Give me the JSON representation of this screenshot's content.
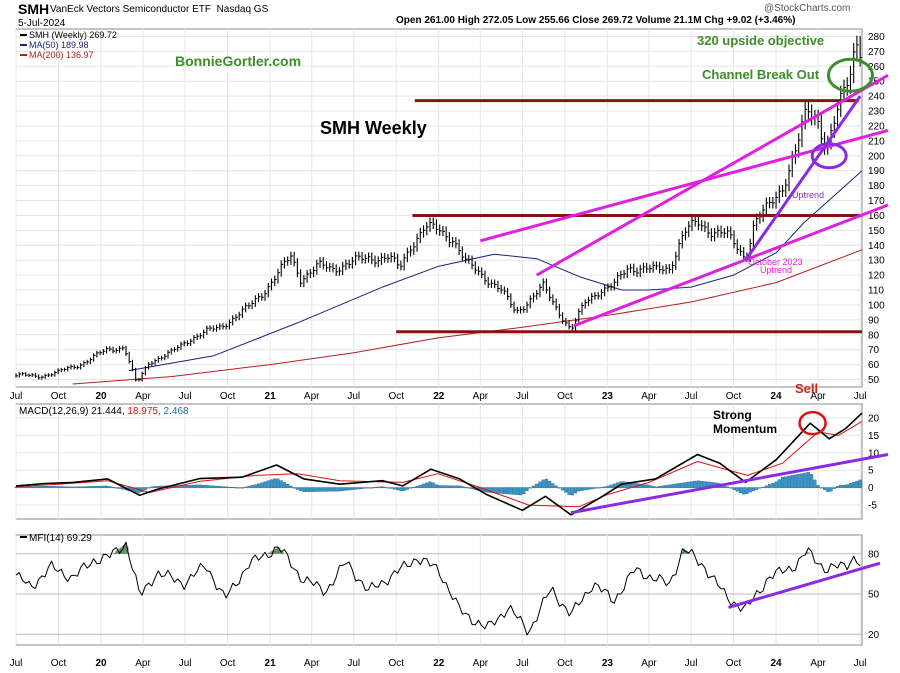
{
  "header": {
    "symbol": "SMH",
    "name": "VanEck Vectors Semiconductor ETF",
    "exchange": "Nasdaq GS",
    "date": "5-Jul-2024",
    "ohlc": "Open 261.00  High 272.05  Low 255.66  Close 269.72  Volume 21.1M  Chg +9.02 (+3.46%)",
    "watermark": "@StockCharts.com"
  },
  "colors": {
    "price": "#000000",
    "ma50": "#1a237e",
    "ma200": "#b22222",
    "support": "#8b1010",
    "channel": "#e020e0",
    "trend": "#8a2be2",
    "macd_signal": "#e01010",
    "histogram": "#3399cc",
    "circle_green": "#3c8f2a",
    "circle_red": "#e01010",
    "annotation_green": "#3c8f2a",
    "annotation_red": "#d02020"
  },
  "chart_data": [
    {
      "panel": "price",
      "type": "line",
      "title": "SMH Weekly",
      "legend": [
        {
          "label": "SMH (Weekly) 269.72",
          "color": "#000000"
        },
        {
          "label": "MA(50) 189.98",
          "color": "#1a237e"
        },
        {
          "label": "MA(200) 136.97",
          "color": "#b22222"
        }
      ],
      "yticks": [
        50,
        60,
        70,
        80,
        90,
        100,
        110,
        120,
        130,
        140,
        150,
        160,
        170,
        180,
        190,
        200,
        210,
        220,
        230,
        240,
        250,
        260,
        270,
        280
      ],
      "ylim": [
        45,
        285
      ],
      "xticks": [
        "Jul",
        "Oct",
        "20",
        "Apr",
        "Jul",
        "Oct",
        "21",
        "Apr",
        "Jul",
        "Oct",
        "22",
        "Apr",
        "Jul",
        "Oct",
        "23",
        "Apr",
        "Jul",
        "Oct",
        "24",
        "Apr",
        "Jul"
      ],
      "x_start": "2019-07-01",
      "x_end": "2024-07-05",
      "series": [
        {
          "name": "SMH (Weekly)",
          "points": [
            [
              "2019-07-01",
              53
            ],
            [
              "2019-08-15",
              52
            ],
            [
              "2019-10-01",
              55
            ],
            [
              "2019-11-15",
              60
            ],
            [
              "2020-01-15",
              70
            ],
            [
              "2020-02-20",
              72
            ],
            [
              "2020-03-18",
              47
            ],
            [
              "2020-04-15",
              62
            ],
            [
              "2020-06-01",
              68
            ],
            [
              "2020-07-15",
              78
            ],
            [
              "2020-08-15",
              82
            ],
            [
              "2020-09-15",
              85
            ],
            [
              "2020-10-15",
              92
            ],
            [
              "2020-11-15",
              98
            ],
            [
              "2020-12-15",
              108
            ],
            [
              "2021-01-15",
              120
            ],
            [
              "2021-02-15",
              132
            ],
            [
              "2021-03-08",
              118
            ],
            [
              "2021-04-15",
              126
            ],
            [
              "2021-05-15",
              124
            ],
            [
              "2021-06-15",
              128
            ],
            [
              "2021-07-15",
              130
            ],
            [
              "2021-08-15",
              132
            ],
            [
              "2021-09-15",
              132
            ],
            [
              "2021-10-08",
              124
            ],
            [
              "2021-11-01",
              140
            ],
            [
              "2021-12-01",
              152
            ],
            [
              "2021-12-31",
              150
            ],
            [
              "2022-01-31",
              145
            ],
            [
              "2022-03-01",
              128
            ],
            [
              "2022-04-15",
              118
            ],
            [
              "2022-05-15",
              110
            ],
            [
              "2022-06-17",
              95
            ],
            [
              "2022-08-15",
              112
            ],
            [
              "2022-09-30",
              90
            ],
            [
              "2022-10-14",
              83
            ],
            [
              "2022-11-15",
              102
            ],
            [
              "2022-12-15",
              110
            ],
            [
              "2023-01-15",
              113
            ],
            [
              "2023-02-15",
              125
            ],
            [
              "2023-03-15",
              125
            ],
            [
              "2023-04-15",
              123
            ],
            [
              "2023-05-15",
              125
            ],
            [
              "2023-06-15",
              148
            ],
            [
              "2023-07-15",
              155
            ],
            [
              "2023-08-15",
              150
            ],
            [
              "2023-09-15",
              147
            ],
            [
              "2023-10-27",
              132
            ],
            [
              "2023-11-15",
              155
            ],
            [
              "2023-12-15",
              165
            ],
            [
              "2024-01-15",
              180
            ],
            [
              "2024-02-15",
              205
            ],
            [
              "2024-03-08",
              230
            ],
            [
              "2024-04-01",
              225
            ],
            [
              "2024-04-19",
              205
            ],
            [
              "2024-05-15",
              230
            ],
            [
              "2024-06-15",
              262
            ],
            [
              "2024-06-20",
              283
            ],
            [
              "2024-07-05",
              270
            ]
          ]
        },
        {
          "name": "MA(50)",
          "points": [
            [
              "2020-03-01",
              56
            ],
            [
              "2020-09-01",
              66
            ],
            [
              "2021-03-01",
              88
            ],
            [
              "2021-09-01",
              112
            ],
            [
              "2022-01-01",
              126
            ],
            [
              "2022-05-01",
              134
            ],
            [
              "2022-08-01",
              131
            ],
            [
              "2022-11-01",
              119
            ],
            [
              "2023-02-01",
              110
            ],
            [
              "2023-04-01",
              110
            ],
            [
              "2023-07-01",
              112
            ],
            [
              "2023-10-01",
              120
            ],
            [
              "2024-01-01",
              135
            ],
            [
              "2024-03-01",
              155
            ],
            [
              "2024-05-01",
              172
            ],
            [
              "2024-07-05",
              190
            ]
          ]
        },
        {
          "name": "MA(200)",
          "points": [
            [
              "2019-11-01",
              47
            ],
            [
              "2020-06-01",
              52
            ],
            [
              "2021-01-01",
              60
            ],
            [
              "2021-07-01",
              68
            ],
            [
              "2022-01-01",
              78
            ],
            [
              "2022-07-01",
              85
            ],
            [
              "2023-01-01",
              93
            ],
            [
              "2023-07-01",
              102
            ],
            [
              "2024-01-01",
              115
            ],
            [
              "2024-07-05",
              137
            ]
          ]
        }
      ],
      "annotations": {
        "site": "BonnieGortler.com",
        "objective": "320 upside objective",
        "channel_break": "Channel Break Out",
        "sell": "Sell",
        "uptrend_top": "Uptrend",
        "uptrend_bottom_1": "October 2023",
        "uptrend_bottom_2": "Uptrend"
      },
      "support_levels": [
        237,
        160,
        82
      ]
    },
    {
      "panel": "macd",
      "type": "line",
      "legend": "MACD(12,26,9) 21.444, 18.975, 2.468",
      "legend_parts": [
        "MACD(12,26,9) 21.444,",
        "18.975,",
        "2.468"
      ],
      "yticks": [
        -5,
        0,
        5,
        10,
        15,
        20
      ],
      "ylim": [
        -9,
        24
      ],
      "annotation_1": "Strong",
      "annotation_2": "Momentum",
      "series": [
        {
          "name": "MACD",
          "points": [
            [
              "2019-07-01",
              0.5
            ],
            [
              "2019-09-01",
              1.2
            ],
            [
              "2019-11-01",
              1.5
            ],
            [
              "2020-01-15",
              2.5
            ],
            [
              "2020-03-25",
              -2.2
            ],
            [
              "2020-05-01",
              -0.5
            ],
            [
              "2020-08-01",
              2.6
            ],
            [
              "2020-11-01",
              3
            ],
            [
              "2021-01-15",
              6.5
            ],
            [
              "2021-03-15",
              2.5
            ],
            [
              "2021-06-01",
              1
            ],
            [
              "2021-09-01",
              2
            ],
            [
              "2021-10-15",
              0.5
            ],
            [
              "2021-12-15",
              5.3
            ],
            [
              "2022-02-15",
              2.5
            ],
            [
              "2022-04-15",
              -2
            ],
            [
              "2022-07-01",
              -6.5
            ],
            [
              "2022-08-20",
              -2.5
            ],
            [
              "2022-10-14",
              -7.8
            ],
            [
              "2022-12-15",
              -3
            ],
            [
              "2023-02-01",
              1
            ],
            [
              "2023-04-15",
              2.5
            ],
            [
              "2023-07-15",
              9.5
            ],
            [
              "2023-09-01",
              7
            ],
            [
              "2023-10-27",
              1.5
            ],
            [
              "2024-01-01",
              8
            ],
            [
              "2024-03-15",
              18.5
            ],
            [
              "2024-04-25",
              14
            ],
            [
              "2024-05-31",
              17
            ],
            [
              "2024-07-05",
              21.4
            ]
          ]
        },
        {
          "name": "Signal",
          "points": [
            [
              "2019-07-01",
              0.3
            ],
            [
              "2019-10-01",
              1
            ],
            [
              "2020-01-15",
              2
            ],
            [
              "2020-04-15",
              -1.4
            ],
            [
              "2020-08-01",
              1.8
            ],
            [
              "2020-12-01",
              3.5
            ],
            [
              "2021-03-01",
              4
            ],
            [
              "2021-06-01",
              2
            ],
            [
              "2021-10-15",
              1.5
            ],
            [
              "2021-12-30",
              4
            ],
            [
              "2022-04-01",
              0
            ],
            [
              "2022-07-15",
              -5
            ],
            [
              "2022-10-31",
              -5.5
            ],
            [
              "2023-01-01",
              -2
            ],
            [
              "2023-04-01",
              1.5
            ],
            [
              "2023-07-15",
              7.5
            ],
            [
              "2023-10-31",
              3.5
            ],
            [
              "2024-01-15",
              7
            ],
            [
              "2024-04-01",
              16
            ],
            [
              "2024-05-15",
              15
            ],
            [
              "2024-07-05",
              19
            ]
          ]
        }
      ]
    },
    {
      "panel": "mfi",
      "type": "line",
      "legend": "MFI(14) 69.29",
      "yticks": [
        20,
        50,
        80
      ],
      "ylim": [
        12,
        94
      ],
      "series": [
        {
          "name": "MFI(14)",
          "points": [
            [
              "2019-07-01",
              64
            ],
            [
              "2019-08-01",
              55
            ],
            [
              "2019-09-15",
              70
            ],
            [
              "2019-11-01",
              62
            ],
            [
              "2019-12-15",
              75
            ],
            [
              "2020-01-20",
              78
            ],
            [
              "2020-02-25",
              88
            ],
            [
              "2020-03-25",
              48
            ],
            [
              "2020-05-01",
              66
            ],
            [
              "2020-07-01",
              58
            ],
            [
              "2020-08-15",
              72
            ],
            [
              "2020-09-25",
              46
            ],
            [
              "2020-11-15",
              72
            ],
            [
              "2021-01-20",
              85
            ],
            [
              "2021-03-10",
              62
            ],
            [
              "2021-05-01",
              52
            ],
            [
              "2021-06-15",
              74
            ],
            [
              "2021-08-01",
              52
            ],
            [
              "2021-09-15",
              62
            ],
            [
              "2021-11-15",
              77
            ],
            [
              "2022-01-01",
              68
            ],
            [
              "2022-02-15",
              38
            ],
            [
              "2022-04-15",
              24
            ],
            [
              "2022-06-01",
              40
            ],
            [
              "2022-07-15",
              22
            ],
            [
              "2022-09-01",
              54
            ],
            [
              "2022-10-14",
              34
            ],
            [
              "2022-12-01",
              58
            ],
            [
              "2023-01-15",
              45
            ],
            [
              "2023-03-01",
              68
            ],
            [
              "2023-05-15",
              57
            ],
            [
              "2023-06-15",
              84
            ],
            [
              "2023-07-31",
              70
            ],
            [
              "2023-09-15",
              48
            ],
            [
              "2023-10-27",
              38
            ],
            [
              "2023-12-15",
              62
            ],
            [
              "2024-02-15",
              72
            ],
            [
              "2024-03-08",
              82
            ],
            [
              "2024-04-19",
              68
            ],
            [
              "2024-06-01",
              72
            ],
            [
              "2024-06-20",
              78
            ],
            [
              "2024-07-05",
              69
            ]
          ]
        }
      ]
    }
  ]
}
